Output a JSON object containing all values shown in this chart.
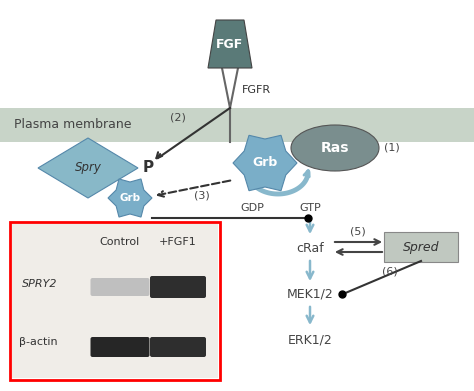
{
  "bg_color": "#ffffff",
  "membrane_color": "#c8d4c8",
  "fgf_color": "#5a7a78",
  "ras_color": "#7a8e8e",
  "grb_color": "#7aaec8",
  "spry_color": "#88b8c8",
  "spred_color": "#c0c8c0",
  "arrow_color": "#88b8cc",
  "plasma_membrane_text": "Plasma membrane",
  "fgf_text": "FGF",
  "fgfr_text": "FGFR",
  "ras_text": "Ras",
  "grb_text": "Grb",
  "spry_text": "Spry",
  "spred_text": "Spred",
  "gdp_text": "GDP",
  "gtp_text": "GTP",
  "craf_text": "cRaf",
  "mek_text": "MEK1/2",
  "erk_text": "ERK1/2",
  "control_text": "Control",
  "fgf1_text": "+FGF1",
  "spry2_text": "SPRY2",
  "bactin_text": "β-actin"
}
